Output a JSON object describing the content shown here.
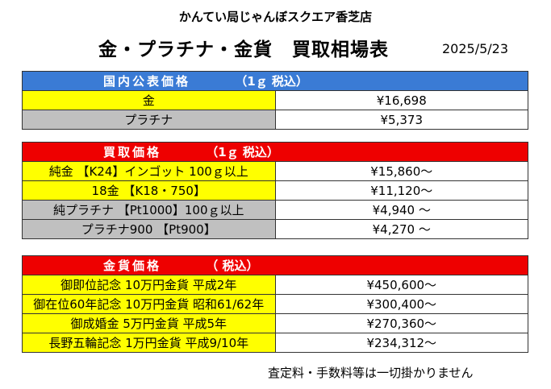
{
  "header": {
    "store": "かんてい局じゃんぼスクエア香芝店",
    "title": "金・プラチナ・金貨　買取相場表",
    "date": "2025/5/23"
  },
  "sections": {
    "public": {
      "label": "国内公表価格",
      "tax": "（1ｇ 税込）",
      "rows": [
        {
          "name": "金",
          "price": "¥16,698"
        },
        {
          "name": "プラチナ",
          "price": "¥5,373"
        }
      ]
    },
    "buy": {
      "label": "買取価格",
      "tax": "（1ｇ 税込）",
      "rows": [
        {
          "name": "純金 【K24】インゴット 100ｇ以上",
          "price": "¥15,860～"
        },
        {
          "name": "18金 【K18・750】",
          "price": "¥11,120～"
        },
        {
          "name": "純プラチナ 【Pt1000】100ｇ以上",
          "price": "¥4,940 ～"
        },
        {
          "name": "プラチナ900 【Pt900】",
          "price": "¥4,270 ～"
        }
      ]
    },
    "coin": {
      "label": "金貨価格",
      "tax": "（ 税込）",
      "rows": [
        {
          "name": "御即位記念 10万円金貨 平成2年",
          "price": "¥450,600～"
        },
        {
          "name": "御在位60年記念 10万円金貨 昭和61/62年",
          "price": "¥300,400～"
        },
        {
          "name": "御成婚金 5万円金貨 平成5年",
          "price": "¥270,360～"
        },
        {
          "name": "長野五輪記念 1万円金貨 平成9/10年",
          "price": "¥234,312～"
        }
      ]
    }
  },
  "footer": {
    "note": "査定料・手数料等は一切掛かりません"
  },
  "colors": {
    "blue_header": "#3a7bd5",
    "red_header": "#ee0000",
    "gold_row": "#ffff00",
    "platinum_row": "#c0c0c0"
  }
}
